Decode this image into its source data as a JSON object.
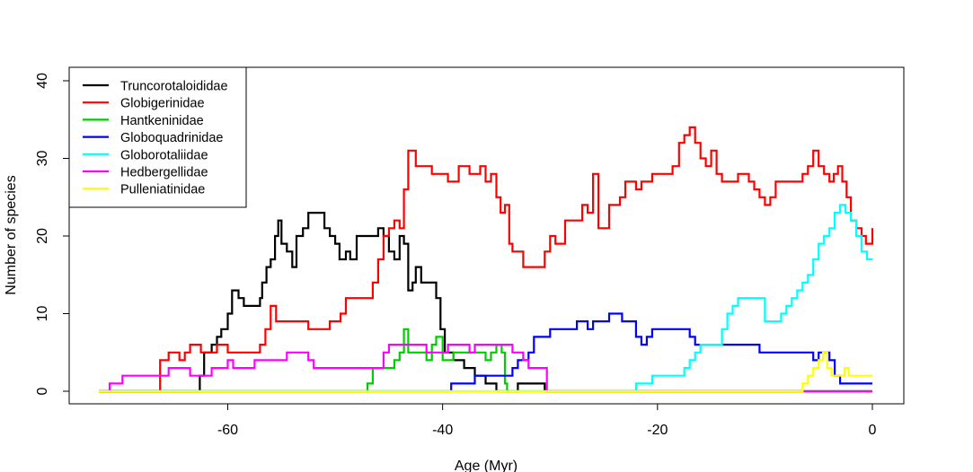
{
  "chart_data": {
    "type": "line",
    "title": "",
    "xlabel": "Age (Myr)",
    "ylabel": "Number of species",
    "xlim": [
      -72,
      0
    ],
    "ylim": [
      0,
      40
    ],
    "xticks": [
      -60,
      -40,
      -20,
      0
    ],
    "yticks": [
      0,
      10,
      20,
      30,
      40
    ],
    "grid": false,
    "legend_position": "top-left",
    "series": [
      {
        "name": "Truncorotaloididae",
        "color": "#000000",
        "points": [
          [
            -72,
            0
          ],
          [
            -63,
            0
          ],
          [
            -62.6,
            2
          ],
          [
            -62.2,
            5
          ],
          [
            -61.5,
            6
          ],
          [
            -61,
            7
          ],
          [
            -60.6,
            8
          ],
          [
            -60,
            10
          ],
          [
            -59.6,
            13
          ],
          [
            -59,
            12
          ],
          [
            -58.5,
            11
          ],
          [
            -57.5,
            11
          ],
          [
            -57,
            12
          ],
          [
            -56.8,
            14
          ],
          [
            -56.4,
            16
          ],
          [
            -56,
            17
          ],
          [
            -55.6,
            20
          ],
          [
            -55.3,
            22
          ],
          [
            -55,
            19
          ],
          [
            -54.5,
            18
          ],
          [
            -54,
            16
          ],
          [
            -53.6,
            20
          ],
          [
            -53,
            21
          ],
          [
            -52.5,
            23
          ],
          [
            -51.5,
            23
          ],
          [
            -51,
            21
          ],
          [
            -50.5,
            20
          ],
          [
            -50,
            19
          ],
          [
            -49.6,
            17
          ],
          [
            -49,
            18
          ],
          [
            -48.6,
            17
          ],
          [
            -48,
            20
          ],
          [
            -46.5,
            20
          ],
          [
            -46,
            21
          ],
          [
            -45.5,
            20
          ],
          [
            -45,
            18
          ],
          [
            -44.5,
            17
          ],
          [
            -44,
            20
          ],
          [
            -43.6,
            19
          ],
          [
            -43.2,
            13
          ],
          [
            -42.8,
            14
          ],
          [
            -42.5,
            16
          ],
          [
            -42,
            14
          ],
          [
            -41,
            14
          ],
          [
            -40.6,
            12
          ],
          [
            -40.2,
            8
          ],
          [
            -39.8,
            5
          ],
          [
            -39,
            4
          ],
          [
            -38,
            3
          ],
          [
            -37,
            2
          ],
          [
            -36,
            1
          ],
          [
            -35,
            0
          ],
          [
            -34,
            0
          ],
          [
            -33,
            1
          ],
          [
            -31,
            1
          ],
          [
            -30.5,
            0
          ],
          [
            0,
            0
          ]
        ]
      },
      {
        "name": "Globigerinidae",
        "color": "#ff0000",
        "points": [
          [
            -72,
            0
          ],
          [
            -66.5,
            0
          ],
          [
            -66.3,
            4
          ],
          [
            -65.5,
            5
          ],
          [
            -64.5,
            4
          ],
          [
            -64,
            5
          ],
          [
            -63.5,
            6
          ],
          [
            -62.5,
            5
          ],
          [
            -61,
            6
          ],
          [
            -60,
            5
          ],
          [
            -57.5,
            5
          ],
          [
            -57,
            6
          ],
          [
            -56.5,
            8
          ],
          [
            -56,
            11
          ],
          [
            -55.5,
            9
          ],
          [
            -53,
            9
          ],
          [
            -52.5,
            8
          ],
          [
            -51,
            8
          ],
          [
            -50.5,
            9
          ],
          [
            -49.5,
            10
          ],
          [
            -49,
            12
          ],
          [
            -47,
            12
          ],
          [
            -46.5,
            14
          ],
          [
            -46,
            17
          ],
          [
            -45.5,
            20
          ],
          [
            -45,
            21
          ],
          [
            -44.5,
            22
          ],
          [
            -44,
            21
          ],
          [
            -43.6,
            26
          ],
          [
            -43.2,
            31
          ],
          [
            -42.5,
            29
          ],
          [
            -41.5,
            29
          ],
          [
            -41,
            28
          ],
          [
            -40,
            28
          ],
          [
            -39.5,
            27
          ],
          [
            -38.5,
            29
          ],
          [
            -37.5,
            28
          ],
          [
            -36.5,
            29
          ],
          [
            -36,
            27
          ],
          [
            -35.5,
            28
          ],
          [
            -35,
            25
          ],
          [
            -34.6,
            23
          ],
          [
            -34.2,
            24
          ],
          [
            -33.8,
            19
          ],
          [
            -33.5,
            18
          ],
          [
            -32.5,
            16
          ],
          [
            -31,
            16
          ],
          [
            -30.5,
            18
          ],
          [
            -30,
            20
          ],
          [
            -29.5,
            19
          ],
          [
            -29,
            19
          ],
          [
            -28.6,
            22
          ],
          [
            -27.5,
            22
          ],
          [
            -27,
            24
          ],
          [
            -26.5,
            23
          ],
          [
            -26,
            28
          ],
          [
            -25.5,
            21
          ],
          [
            -25,
            21
          ],
          [
            -24.5,
            24
          ],
          [
            -23.5,
            25
          ],
          [
            -23,
            27
          ],
          [
            -22,
            26
          ],
          [
            -21.5,
            27
          ],
          [
            -20.5,
            28
          ],
          [
            -19,
            28
          ],
          [
            -18.6,
            29
          ],
          [
            -18,
            32
          ],
          [
            -17.5,
            33
          ],
          [
            -17,
            34
          ],
          [
            -16.5,
            32
          ],
          [
            -16,
            30
          ],
          [
            -15.5,
            29
          ],
          [
            -15,
            31
          ],
          [
            -14.5,
            28
          ],
          [
            -14,
            27
          ],
          [
            -13,
            27
          ],
          [
            -12.5,
            28
          ],
          [
            -11.5,
            27
          ],
          [
            -11,
            26
          ],
          [
            -10.5,
            25
          ],
          [
            -10,
            24
          ],
          [
            -9.5,
            25
          ],
          [
            -9,
            27
          ],
          [
            -7,
            27
          ],
          [
            -6.5,
            28
          ],
          [
            -6,
            29
          ],
          [
            -5.5,
            31
          ],
          [
            -5,
            29
          ],
          [
            -4.5,
            28
          ],
          [
            -4,
            27
          ],
          [
            -3.6,
            28
          ],
          [
            -3.2,
            29
          ],
          [
            -2.8,
            27
          ],
          [
            -2.4,
            25
          ],
          [
            -2,
            22
          ],
          [
            -1.5,
            21
          ],
          [
            -1,
            20
          ],
          [
            -0.6,
            19
          ],
          [
            0,
            21
          ]
        ]
      },
      {
        "name": "Hantkeninidae",
        "color": "#00cd00",
        "points": [
          [
            -72,
            0
          ],
          [
            -47.5,
            0
          ],
          [
            -47,
            1
          ],
          [
            -46.5,
            3
          ],
          [
            -45,
            3
          ],
          [
            -44.5,
            4
          ],
          [
            -44,
            5
          ],
          [
            -43.6,
            8
          ],
          [
            -43.2,
            5
          ],
          [
            -42,
            5
          ],
          [
            -41.5,
            4
          ],
          [
            -41,
            6
          ],
          [
            -40.6,
            7
          ],
          [
            -40,
            4
          ],
          [
            -39,
            5
          ],
          [
            -37,
            5
          ],
          [
            -36,
            4
          ],
          [
            -35.5,
            5
          ],
          [
            -35,
            6
          ],
          [
            -34.5,
            5
          ],
          [
            -34.2,
            1
          ],
          [
            -34,
            0
          ],
          [
            0,
            0
          ]
        ]
      },
      {
        "name": "Globoquadrinidae",
        "color": "#0000ff",
        "points": [
          [
            -72,
            0
          ],
          [
            -39.5,
            0
          ],
          [
            -39.2,
            1
          ],
          [
            -37.5,
            1
          ],
          [
            -37,
            2
          ],
          [
            -34,
            2
          ],
          [
            -33.5,
            3
          ],
          [
            -33,
            4
          ],
          [
            -32,
            5
          ],
          [
            -31.5,
            7
          ],
          [
            -30.5,
            7
          ],
          [
            -30,
            8
          ],
          [
            -28,
            8
          ],
          [
            -27.5,
            9
          ],
          [
            -27,
            9
          ],
          [
            -26.5,
            8
          ],
          [
            -26,
            9
          ],
          [
            -25,
            9
          ],
          [
            -24.5,
            10
          ],
          [
            -23.8,
            10
          ],
          [
            -23.3,
            9
          ],
          [
            -22.5,
            9
          ],
          [
            -22,
            7
          ],
          [
            -21.5,
            6
          ],
          [
            -21,
            7
          ],
          [
            -20.5,
            8
          ],
          [
            -17.5,
            8
          ],
          [
            -17,
            7
          ],
          [
            -16.5,
            6
          ],
          [
            -11,
            6
          ],
          [
            -10.5,
            5
          ],
          [
            -6,
            5
          ],
          [
            -5.5,
            4
          ],
          [
            -5,
            5
          ],
          [
            -4.5,
            5
          ],
          [
            -4,
            4
          ],
          [
            -3.5,
            2
          ],
          [
            -3,
            1
          ],
          [
            0,
            1
          ]
        ]
      },
      {
        "name": "Globorotaliidae",
        "color": "#00ffff",
        "points": [
          [
            -72,
            0
          ],
          [
            -22.5,
            0
          ],
          [
            -22,
            1
          ],
          [
            -21,
            1
          ],
          [
            -20.5,
            2
          ],
          [
            -18,
            2
          ],
          [
            -17.5,
            3
          ],
          [
            -17,
            4
          ],
          [
            -16.5,
            5
          ],
          [
            -16,
            6
          ],
          [
            -14.5,
            6
          ],
          [
            -14,
            8
          ],
          [
            -13.5,
            10
          ],
          [
            -13,
            11
          ],
          [
            -12.5,
            12
          ],
          [
            -10.5,
            12
          ],
          [
            -10,
            9
          ],
          [
            -9,
            9
          ],
          [
            -8.5,
            10
          ],
          [
            -8,
            11
          ],
          [
            -7.5,
            12
          ],
          [
            -7,
            13
          ],
          [
            -6.5,
            14
          ],
          [
            -6,
            15
          ],
          [
            -5.5,
            17
          ],
          [
            -5,
            19
          ],
          [
            -4.5,
            20
          ],
          [
            -4,
            21
          ],
          [
            -3.5,
            23
          ],
          [
            -3,
            24
          ],
          [
            -2.5,
            23
          ],
          [
            -2,
            22
          ],
          [
            -1.5,
            20
          ],
          [
            -1,
            18
          ],
          [
            -0.5,
            17
          ],
          [
            0,
            17
          ]
        ]
      },
      {
        "name": "Hedbergellidae",
        "color": "#ff00ff",
        "points": [
          [
            -72,
            0
          ],
          [
            -71.2,
            0
          ],
          [
            -71,
            1
          ],
          [
            -70,
            1
          ],
          [
            -69.8,
            2
          ],
          [
            -66,
            2
          ],
          [
            -65.5,
            3
          ],
          [
            -64,
            3
          ],
          [
            -63.5,
            2
          ],
          [
            -62,
            2
          ],
          [
            -61.5,
            3
          ],
          [
            -60,
            4
          ],
          [
            -59.5,
            3
          ],
          [
            -58,
            3
          ],
          [
            -57.5,
            4
          ],
          [
            -55,
            4
          ],
          [
            -54.5,
            5
          ],
          [
            -53,
            5
          ],
          [
            -52.5,
            4
          ],
          [
            -52,
            3
          ],
          [
            -46,
            3
          ],
          [
            -45.5,
            5
          ],
          [
            -45,
            6
          ],
          [
            -42,
            6
          ],
          [
            -41.5,
            5
          ],
          [
            -40,
            5
          ],
          [
            -39.5,
            6
          ],
          [
            -38,
            6
          ],
          [
            -37.5,
            5
          ],
          [
            -37,
            6
          ],
          [
            -34,
            6
          ],
          [
            -33.5,
            5
          ],
          [
            -32.5,
            4
          ],
          [
            -32,
            3
          ],
          [
            -30.5,
            3
          ],
          [
            -30.3,
            0
          ],
          [
            0,
            0
          ]
        ]
      },
      {
        "name": "Pulleniatinidae",
        "color": "#ffff00",
        "points": [
          [
            -72,
            0
          ],
          [
            -7,
            0
          ],
          [
            -6.5,
            1
          ],
          [
            -6,
            2
          ],
          [
            -5.5,
            3
          ],
          [
            -5,
            4
          ],
          [
            -4.6,
            5
          ],
          [
            -4.2,
            3
          ],
          [
            -3.8,
            2
          ],
          [
            -3,
            2
          ],
          [
            -2.6,
            3
          ],
          [
            -2.2,
            2
          ],
          [
            0,
            2
          ]
        ]
      }
    ]
  }
}
